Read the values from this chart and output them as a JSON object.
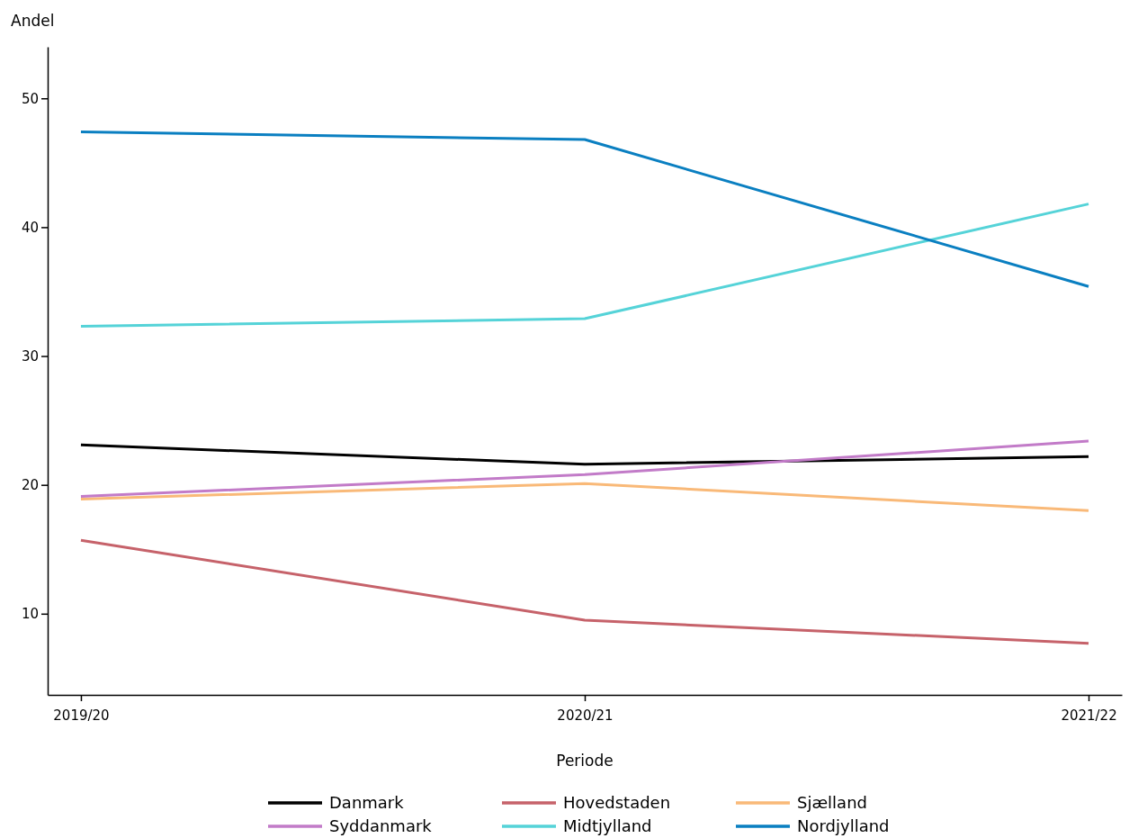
{
  "chart_data": {
    "type": "line",
    "xlabel": "Periode",
    "ylabel": "Andel",
    "categories": [
      "2019/20",
      "2020/21",
      "2021/22"
    ],
    "series": [
      {
        "name": "Danmark",
        "color": "#000000",
        "values": [
          23.1,
          21.6,
          22.2
        ]
      },
      {
        "name": "Hovedstaden",
        "color": "#c6626a",
        "values": [
          15.7,
          9.5,
          7.7
        ]
      },
      {
        "name": "Sjælland",
        "color": "#f9b978",
        "values": [
          18.9,
          20.1,
          18.0
        ]
      },
      {
        "name": "Syddanmark",
        "color": "#c27bc8",
        "values": [
          19.1,
          20.8,
          23.4
        ]
      },
      {
        "name": "Midtjylland",
        "color": "#55d3d8",
        "values": [
          32.3,
          32.9,
          41.8
        ]
      },
      {
        "name": "Nordjylland",
        "color": "#0a7fc1",
        "values": [
          47.4,
          46.8,
          35.4
        ]
      }
    ],
    "ylim": [
      3.7,
      54
    ],
    "yticks": [
      10,
      20,
      30,
      40,
      50
    ],
    "grid": false,
    "legend": "bottom",
    "marker": "none",
    "line_style": "solid"
  }
}
